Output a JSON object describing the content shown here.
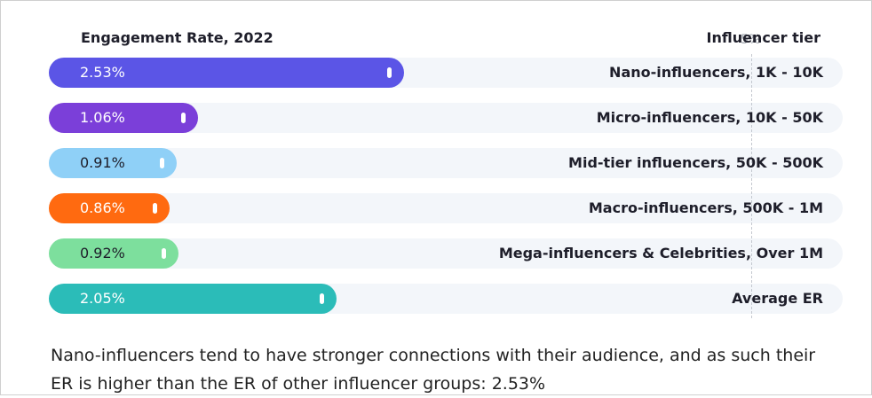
{
  "chart_data": {
    "type": "bar",
    "orientation": "horizontal",
    "title": "Engagement Rate, 2022",
    "category_header": "Influencer tier",
    "reference_line": {
      "value": 5,
      "label": "5%"
    },
    "xlim": [
      0,
      5.65
    ],
    "categories": [
      "Nano-influencers, 1K - 10K",
      "Micro-influencers, 10K - 50K",
      "Mid-tier influencers, 50K - 500K",
      "Macro-influencers, 500K - 1M",
      "Mega-influencers & Celebrities, Over 1M",
      "Average ER"
    ],
    "values": [
      2.53,
      1.06,
      0.91,
      0.86,
      0.92,
      2.05
    ],
    "value_labels": [
      "2.53%",
      "1.06%",
      "0.91%",
      "0.86%",
      "0.92%",
      "2.05%"
    ],
    "colors": [
      "#5b55e6",
      "#7b3fd9",
      "#8fd0f7",
      "#ff6a10",
      "#7ddf9d",
      "#2bbcb8"
    ],
    "value_label_colors": [
      "#ffffff",
      "#ffffff",
      "#1e1e2a",
      "#ffffff",
      "#1e1e2a",
      "#ffffff"
    ]
  },
  "caption": "Nano-influencers tend to have stronger connections with their audience, and as such their ER is higher than the ER of other influencer groups: 2.53%"
}
